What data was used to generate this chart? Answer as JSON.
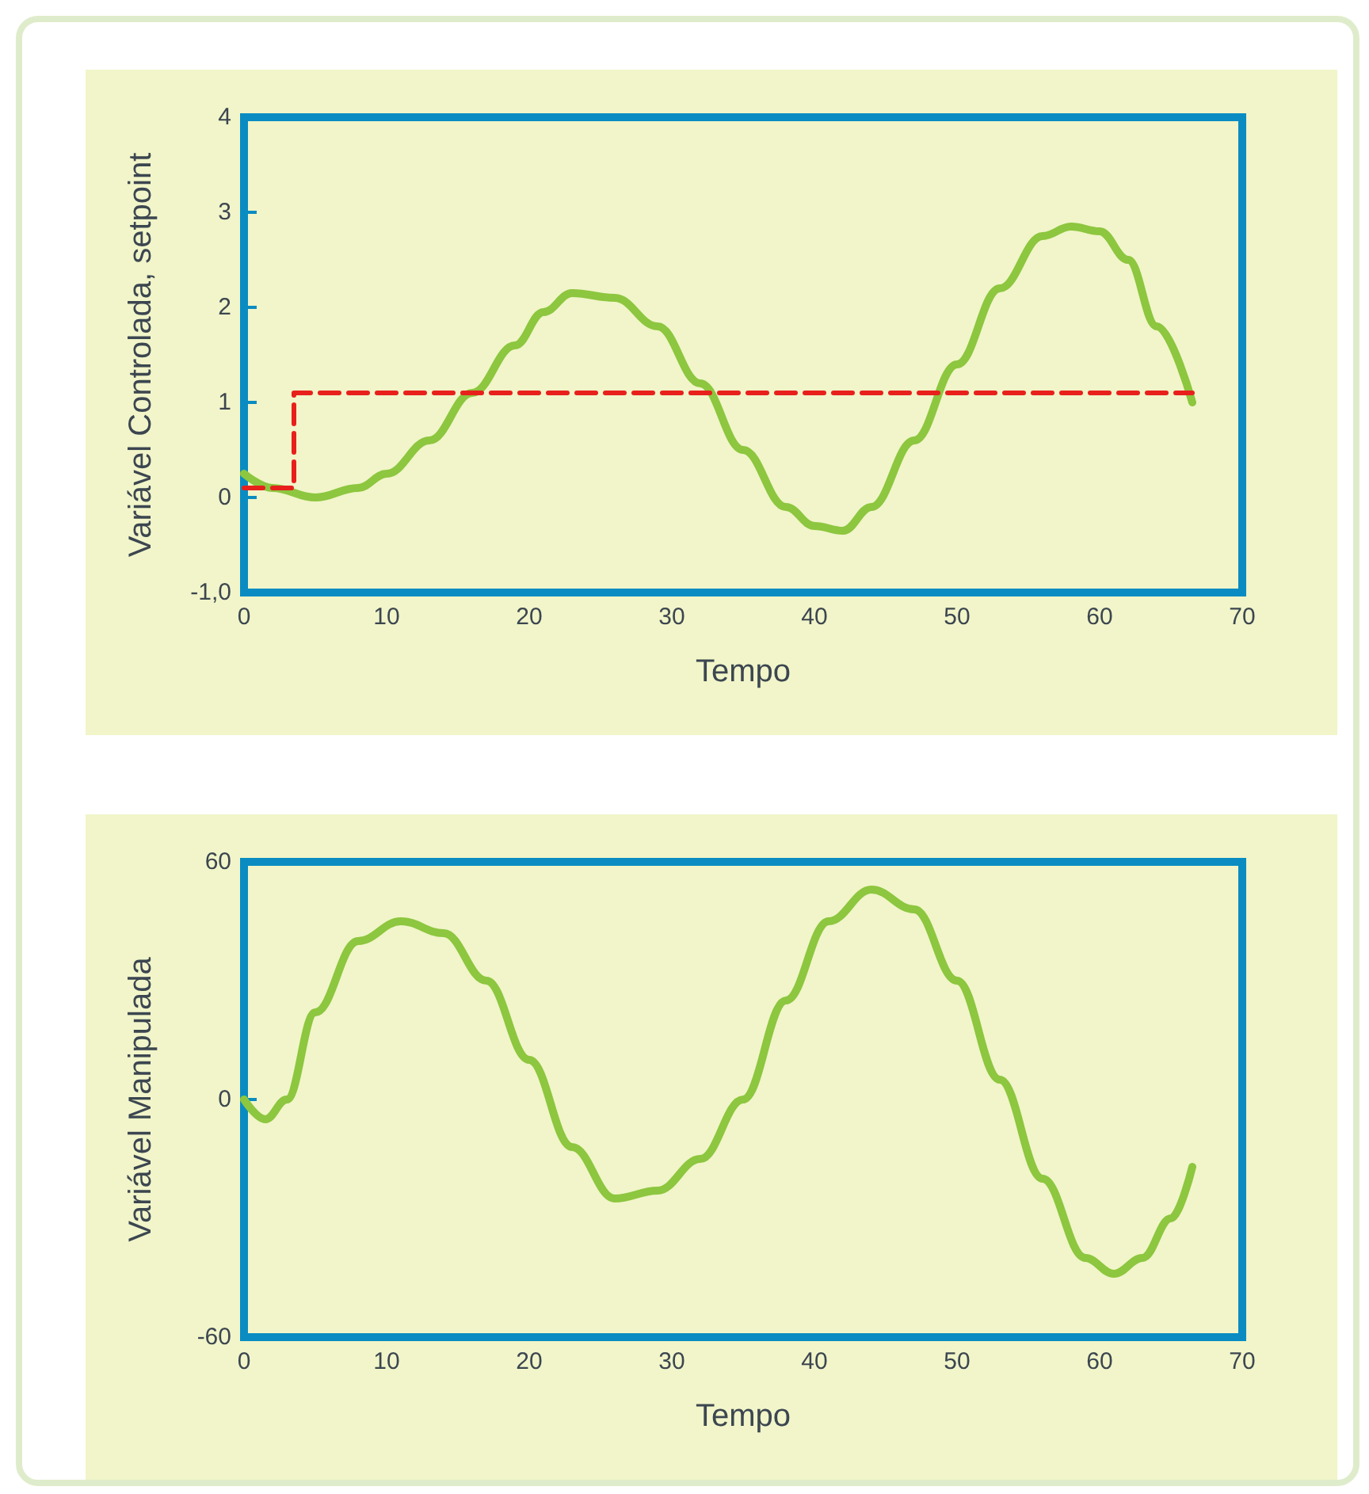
{
  "chart_data": [
    {
      "type": "line",
      "xlabel": "Tempo",
      "ylabel": "Variável Controlada, setpoint",
      "xlim": [
        0,
        70
      ],
      "xticks": [
        0,
        10,
        20,
        30,
        40,
        50,
        60,
        70
      ],
      "ylim": [
        -1,
        4
      ],
      "yticks": [
        {
          "value": -1,
          "label": "-1,0"
        },
        0,
        1,
        2,
        3,
        4
      ],
      "marker": "none",
      "series": [
        {
          "color": "#8dc63f",
          "line_style": "solid",
          "x": [
            0,
            2,
            5,
            8,
            10,
            13,
            16,
            19,
            21,
            23,
            26,
            29,
            32,
            35,
            38,
            40,
            42,
            44,
            47,
            50,
            53,
            56,
            58,
            60,
            62,
            64,
            66.5
          ],
          "values": [
            0.25,
            0.1,
            0.0,
            0.1,
            0.25,
            0.6,
            1.1,
            1.6,
            1.95,
            2.15,
            2.1,
            1.8,
            1.2,
            0.5,
            -0.1,
            -0.3,
            -0.35,
            -0.1,
            0.6,
            1.4,
            2.2,
            2.75,
            2.85,
            2.8,
            2.5,
            1.8,
            1.0
          ]
        },
        {
          "type": "step",
          "color": "#e8201c",
          "line_style": "dashed",
          "x": [
            0,
            3.5,
            66.5
          ],
          "values": [
            0.1,
            1.1,
            1.1
          ]
        }
      ]
    },
    {
      "type": "line",
      "xlabel": "Tempo",
      "ylabel": "Variável Manipulada",
      "xlim": [
        0,
        70
      ],
      "xticks": [
        0,
        10,
        20,
        30,
        40,
        50,
        60,
        70
      ],
      "ylim": [
        -60,
        60
      ],
      "yticks": [
        -60,
        0,
        60
      ],
      "marker": "none",
      "series": [
        {
          "color": "#8dc63f",
          "line_style": "solid",
          "x": [
            0,
            1.5,
            3,
            5,
            8,
            11,
            14,
            17,
            20,
            23,
            26,
            29,
            32,
            35,
            38,
            41,
            44,
            47,
            50,
            53,
            56,
            59,
            61,
            63,
            65,
            66.5
          ],
          "values": [
            0,
            -5,
            0,
            22,
            40,
            45,
            42,
            30,
            10,
            -12,
            -25,
            -23,
            -15,
            0,
            25,
            45,
            53,
            48,
            30,
            5,
            -20,
            -40,
            -44,
            -40,
            -30,
            -17
          ]
        }
      ]
    }
  ]
}
